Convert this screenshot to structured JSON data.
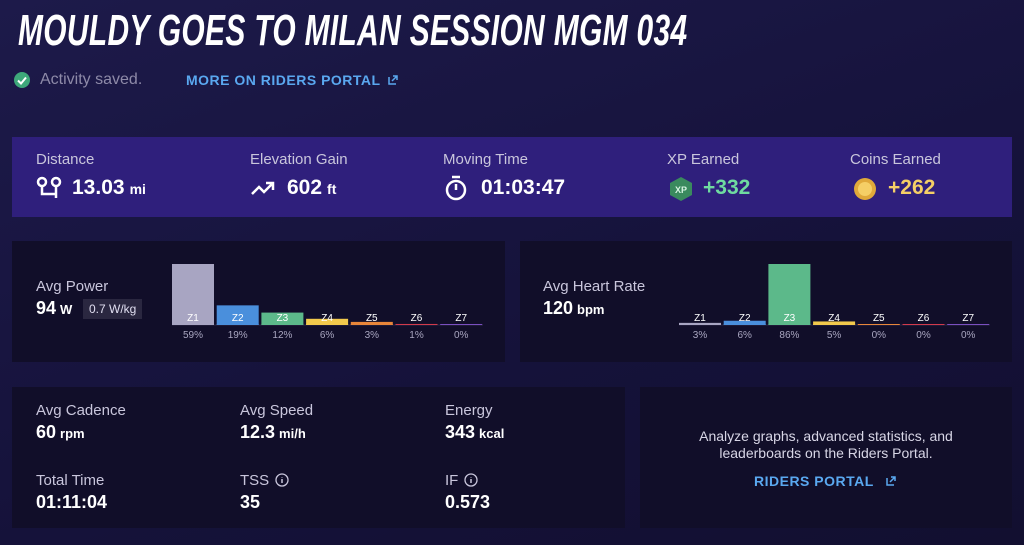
{
  "header": {
    "title": "MOULDY GOES TO MILAN SESSION MGM 034",
    "status": "Activity saved.",
    "link": "MORE ON RIDERS PORTAL"
  },
  "summary": [
    {
      "label": "Distance",
      "value": "13.03",
      "unit": "mi"
    },
    {
      "label": "Elevation Gain",
      "value": "602",
      "unit": "ft"
    },
    {
      "label": "Moving Time",
      "value": "01:03:47"
    },
    {
      "label": "XP Earned",
      "icon": "XP",
      "value": "+332"
    },
    {
      "label": "Coins Earned",
      "value": "+262"
    }
  ],
  "power": {
    "label": "Avg Power",
    "value": "94",
    "unit": "W",
    "badge": "0.7 W/kg",
    "zones": {
      "categories": [
        "Z1",
        "Z2",
        "Z3",
        "Z4",
        "Z5",
        "Z6",
        "Z7"
      ],
      "values": [
        59,
        19,
        12,
        6,
        3,
        1,
        0
      ],
      "value_labels": [
        "59%",
        "19%",
        "12%",
        "6%",
        "3%",
        "1%",
        "0%"
      ],
      "colors": [
        "#a8a5c2",
        "#4a8fdc",
        "#5cb98a",
        "#f2c94c",
        "#e8863a",
        "#d23a4c",
        "#7a4fc0"
      ]
    }
  },
  "heart_rate": {
    "label": "Avg Heart Rate",
    "value": "120",
    "unit": "bpm",
    "zones": {
      "categories": [
        "Z1",
        "Z2",
        "Z3",
        "Z4",
        "Z5",
        "Z6",
        "Z7"
      ],
      "values": [
        3,
        6,
        86,
        5,
        0,
        0,
        0
      ],
      "value_labels": [
        "3%",
        "6%",
        "86%",
        "5%",
        "0%",
        "0%",
        "0%"
      ],
      "colors": [
        "#a8a5c2",
        "#4a8fdc",
        "#5cb98a",
        "#f2c94c",
        "#e8863a",
        "#d23a4c",
        "#7a4fc0"
      ]
    }
  },
  "metrics": [
    {
      "label": "Avg Cadence",
      "value": "60",
      "unit": "rpm"
    },
    {
      "label": "Avg Speed",
      "value": "12.3",
      "unit": "mi/h"
    },
    {
      "label": "Energy",
      "value": "343",
      "unit": "kcal"
    },
    {
      "label": "Total Time",
      "value": "01:11:04"
    },
    {
      "label": "TSS",
      "value": "35"
    },
    {
      "label": "IF",
      "value": "0.573"
    }
  ],
  "portal": {
    "text": "Analyze graphs, advanced statistics, and leaderboards on the Riders Portal.",
    "link": "RIDERS PORTAL"
  }
}
